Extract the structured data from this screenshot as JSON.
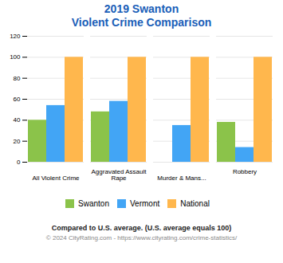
{
  "chart_data": {
    "type": "bar",
    "title": "2019 Swanton",
    "subtitle": "Violent Crime Comparison",
    "categories": [
      "All Violent Crime",
      "Aggravated Assault\nRape",
      "Murder & Mans...",
      "Robbery"
    ],
    "series": [
      {
        "name": "Swanton",
        "color": "#8bc34a",
        "values": [
          40,
          48,
          0,
          38
        ]
      },
      {
        "name": "Vermont",
        "color": "#42a5f5",
        "values": [
          54,
          58,
          35,
          14
        ]
      },
      {
        "name": "National",
        "color": "#ffb74d",
        "values": [
          100,
          100,
          100,
          100
        ]
      }
    ],
    "ylim": [
      0,
      120
    ],
    "yticks": [
      0,
      20,
      40,
      60,
      80,
      100,
      120
    ],
    "grid": true,
    "legend": "bottom",
    "annotations": [
      "Compared to U.S. average. (U.S. average equals 100)",
      "© 2024 CityRating.com - https://www.cityrating.com/crime-statistics/"
    ]
  }
}
